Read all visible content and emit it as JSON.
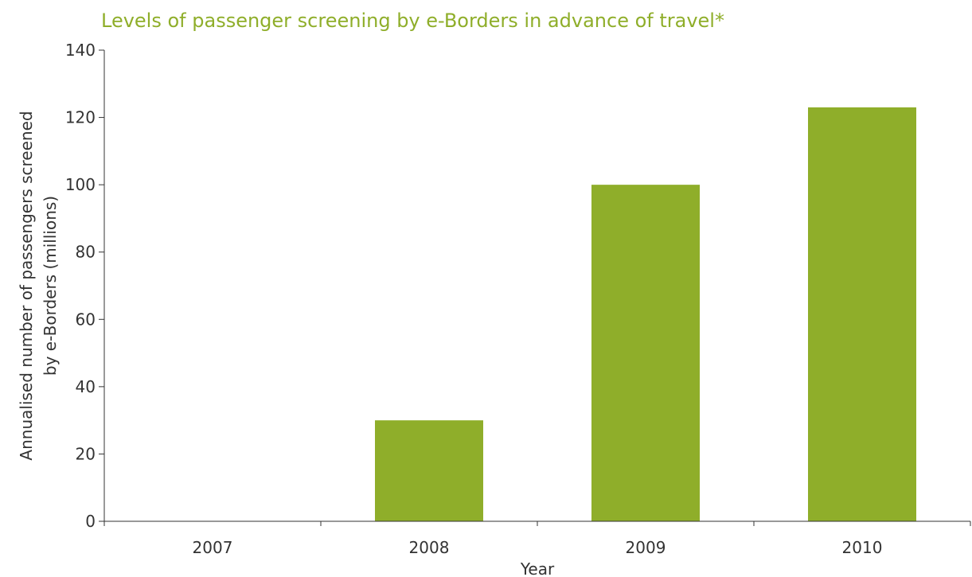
{
  "chart_data": {
    "type": "bar",
    "title": "Levels of passenger screening by e-Borders in advance of travel*",
    "categories": [
      "2007",
      "2008",
      "2009",
      "2010"
    ],
    "values": [
      0,
      30,
      100,
      123
    ],
    "xlabel": "Year",
    "ylabel_lines": [
      "Annualised number of passengers screened",
      "by e-Borders (millions)"
    ],
    "ylim": [
      0,
      140
    ],
    "yticks": [
      0,
      20,
      40,
      60,
      80,
      100,
      120,
      140
    ],
    "grid": false,
    "legend": "none",
    "bar_color": "#8fae2a",
    "title_color": "#8fae2a"
  }
}
